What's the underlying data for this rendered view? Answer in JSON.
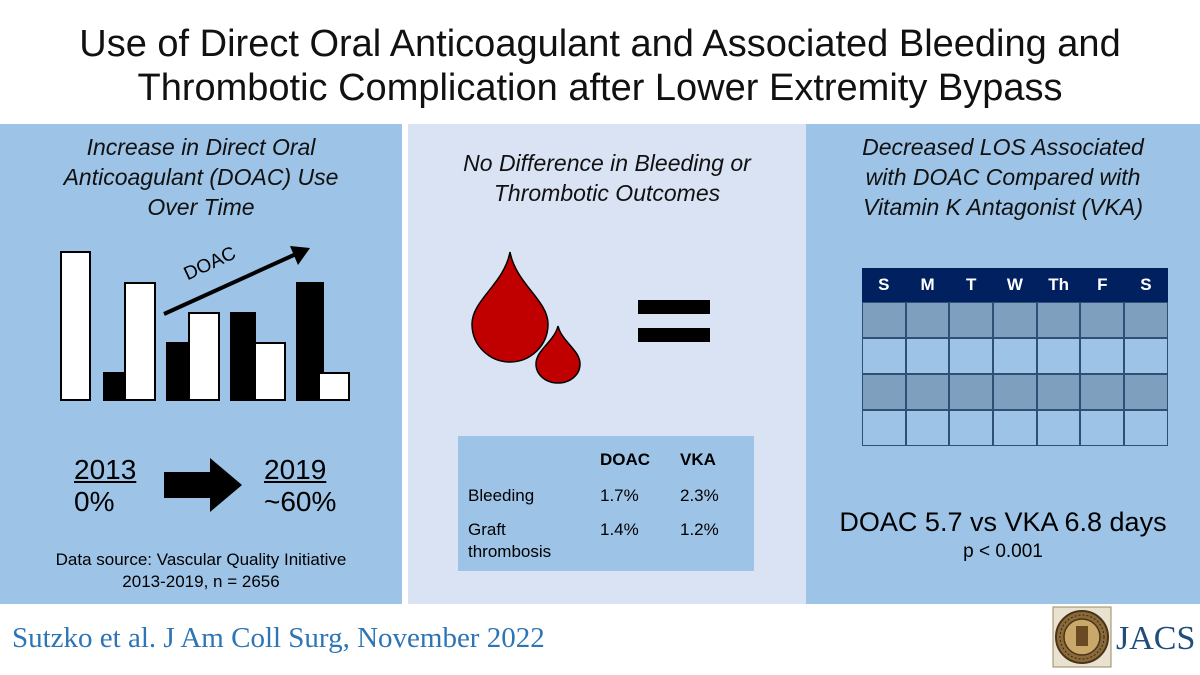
{
  "title": {
    "line1": "Use of Direct Oral Anticoagulant and Associated Bleeding and",
    "line2": "Thrombotic Complication after Lower Extremity Bypass"
  },
  "panel_left": {
    "heading": [
      "Increase in Direct Oral",
      "Anticoagulant (DOAC) Use",
      "Over Time"
    ],
    "arrow_label": "DOAC",
    "start_year": "2013",
    "start_value": "0%",
    "end_year": "2019",
    "end_value": "~60%",
    "source_line1": "Data source: Vascular Quality Initiative",
    "source_line2": "2013-2019, n = 2656"
  },
  "panel_middle": {
    "heading": [
      "No Difference in Bleeding or",
      "Thrombotic Outcomes"
    ],
    "table": {
      "columns": [
        "DOAC",
        "VKA"
      ],
      "rows": [
        {
          "label": "Bleeding",
          "doac": "1.7%",
          "vka": "2.3%"
        },
        {
          "label": "Graft thrombosis",
          "label_line1": "Graft",
          "label_line2": "thrombosis",
          "doac": "1.4%",
          "vka": "1.2%"
        }
      ]
    }
  },
  "panel_right": {
    "heading": [
      "Decreased LOS Associated",
      "with DOAC Compared with",
      "Vitamin K Antagonist (VKA)"
    ],
    "calendar_days": [
      "S",
      "M",
      "T",
      "W",
      "Th",
      "F",
      "S"
    ],
    "result": "DOAC 5.7 vs VKA 6.8 days",
    "p_value": "p < 0.001"
  },
  "footer": {
    "citation": "Sutzko et al. J Am Coll Surg, November 2022",
    "journal": "JACS"
  },
  "colors": {
    "panel_blue": "#9dc3e6",
    "panel_light": "#dae3f3",
    "blood_red": "#c00000",
    "calendar_header": "#002060",
    "citation_blue": "#2e75b6"
  }
}
